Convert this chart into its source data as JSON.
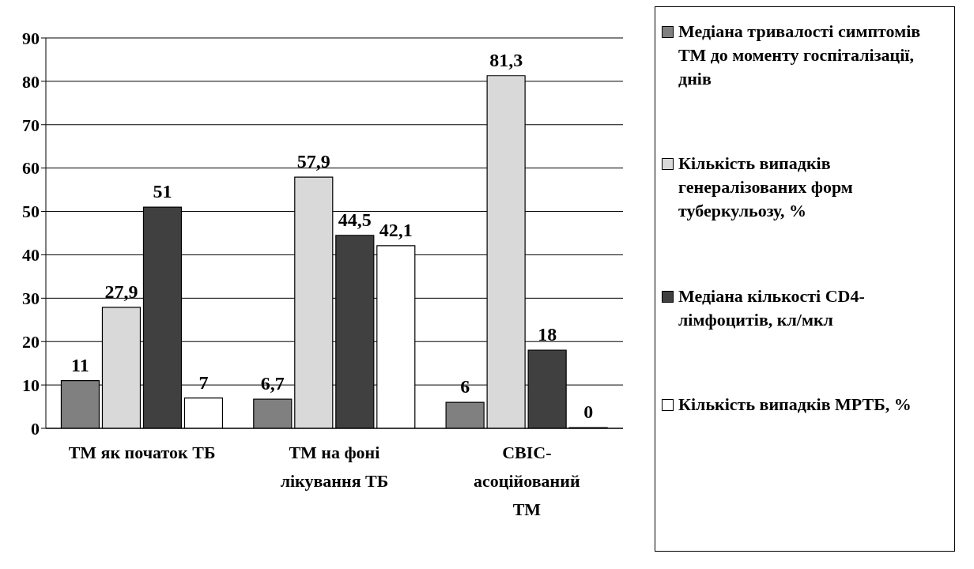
{
  "chart_data": {
    "type": "bar",
    "categories": [
      "ТМ як початок ТБ",
      "ТМ на фоні лікування ТБ",
      "СВІС-асоційований ТМ"
    ],
    "series": [
      {
        "name": "Медіана тривалості симптомів ТМ до моменту госпіталізації, днів",
        "color": "#808080",
        "values": [
          11,
          6.7,
          6
        ],
        "value_labels": [
          "11",
          "6,7",
          "6"
        ]
      },
      {
        "name": "Кількість випадків генералізованих форм туберкульозу, %",
        "color": "#d9d9d9",
        "values": [
          27.9,
          57.9,
          81.3
        ],
        "value_labels": [
          "27,9",
          "57,9",
          "81,3"
        ]
      },
      {
        "name": "Медіана кількості CD4-лімфоцитів, кл/мкл",
        "color": "#404040",
        "values": [
          51,
          44.5,
          18
        ],
        "value_labels": [
          "51",
          "44,5",
          "18"
        ]
      },
      {
        "name": "Кількість випадків МРТБ, %",
        "color": "#ffffff",
        "values": [
          7,
          42.1,
          0
        ],
        "value_labels": [
          "7",
          "42,1",
          "0"
        ]
      }
    ],
    "ylim": [
      0,
      90
    ],
    "yticks": [
      0,
      10,
      20,
      30,
      40,
      50,
      60,
      70,
      80,
      90
    ],
    "grid": "y",
    "legend": "right"
  }
}
